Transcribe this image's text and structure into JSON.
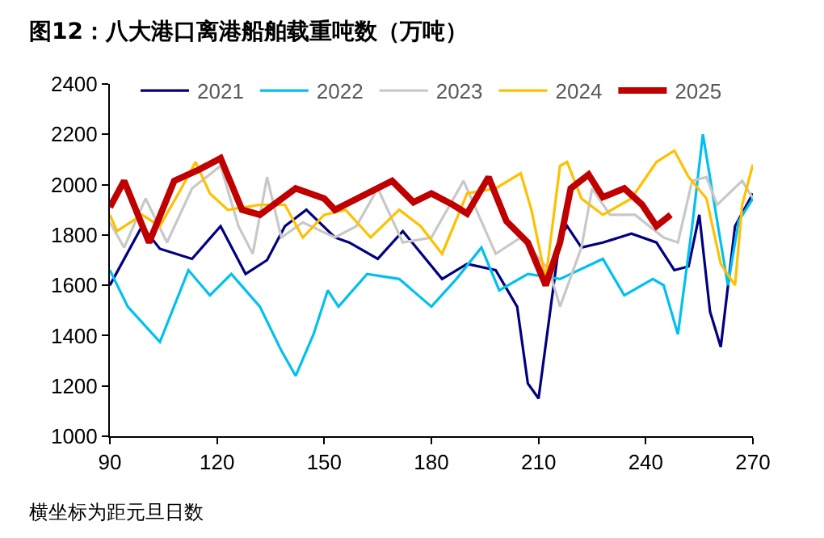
{
  "chart_data": {
    "type": "line",
    "title": "图12：八大港口离港船舶载重吨数（万吨）",
    "annotations": [
      "横坐标为距元旦日数"
    ],
    "xlim": [
      90,
      270
    ],
    "xticks": [
      90,
      120,
      150,
      180,
      210,
      240,
      270
    ],
    "ylim": [
      1000,
      2400
    ],
    "yticks": [
      1000,
      1200,
      1400,
      1600,
      1800,
      2000,
      2200,
      2400
    ],
    "grid": false,
    "legend": "top",
    "line_style": "solid",
    "marker": "none",
    "series": [
      {
        "name": "2021",
        "color": "#000080",
        "x": [
          90,
          99,
          104,
          113,
          121,
          128,
          134,
          139,
          145,
          153,
          157,
          165,
          172,
          183,
          190,
          198,
          204,
          207,
          210,
          213,
          216,
          218,
          222,
          228,
          236,
          243,
          248,
          252,
          255,
          258,
          261,
          265,
          270
        ],
        "values": [
          1600,
          1835,
          1745,
          1705,
          1835,
          1645,
          1700,
          1835,
          1900,
          1790,
          1770,
          1705,
          1815,
          1625,
          1685,
          1660,
          1515,
          1210,
          1150,
          1470,
          1790,
          1835,
          1750,
          1770,
          1805,
          1770,
          1660,
          1675,
          1880,
          1495,
          1355,
          1835,
          1965
        ]
      },
      {
        "name": "2022",
        "color": "#00c0f0",
        "x": [
          90,
          95,
          104,
          112,
          118,
          124,
          132,
          138,
          142,
          147,
          151,
          154,
          162,
          171,
          180,
          187,
          194,
          199,
          207,
          216,
          219,
          228,
          234,
          242,
          245,
          249,
          253,
          256,
          260,
          263,
          266,
          270
        ],
        "values": [
          1660,
          1515,
          1375,
          1660,
          1560,
          1645,
          1515,
          1340,
          1240,
          1405,
          1580,
          1515,
          1645,
          1625,
          1515,
          1625,
          1750,
          1580,
          1645,
          1625,
          1645,
          1705,
          1560,
          1625,
          1600,
          1405,
          1835,
          2200,
          1855,
          1600,
          1855,
          1945
        ]
      },
      {
        "name": "2023",
        "color": "#c8c8c8",
        "x": [
          90,
          94,
          100,
          106,
          113,
          121,
          126,
          130,
          134,
          138,
          144,
          153,
          159,
          165,
          172,
          180,
          189,
          198,
          205,
          213,
          216,
          222,
          225,
          230,
          237,
          245,
          249,
          253,
          257,
          260,
          267,
          270
        ],
        "values": [
          1850,
          1750,
          1945,
          1770,
          1985,
          2075,
          1835,
          1725,
          2030,
          1790,
          1850,
          1790,
          1835,
          1985,
          1770,
          1790,
          2015,
          1725,
          1790,
          1660,
          1515,
          1750,
          1985,
          1880,
          1880,
          1790,
          1770,
          2015,
          2030,
          1920,
          2015,
          1945
        ]
      },
      {
        "name": "2024",
        "color": "#ffc000",
        "x": [
          90,
          92,
          99,
          104,
          110,
          114,
          118,
          123,
          132,
          139,
          144,
          150,
          156,
          163,
          171,
          177,
          183,
          190,
          198,
          205,
          208,
          212,
          216,
          218,
          222,
          228,
          236,
          243,
          248,
          252,
          257,
          261,
          265,
          267,
          270
        ],
        "values": [
          1880,
          1815,
          1880,
          1835,
          1985,
          2090,
          1965,
          1900,
          1920,
          1920,
          1790,
          1880,
          1900,
          1790,
          1900,
          1835,
          1725,
          1965,
          1985,
          2045,
          1900,
          1625,
          2075,
          2090,
          1945,
          1880,
          1945,
          2090,
          2135,
          2030,
          1945,
          1685,
          1600,
          1920,
          2080
        ]
      },
      {
        "name": "2025",
        "color": "#c00000",
        "x": [
          90,
          94,
          101,
          108,
          115,
          121,
          127,
          132,
          142,
          150,
          153,
          169,
          175,
          180,
          186,
          190,
          196,
          201,
          207,
          212,
          216,
          219,
          224,
          228,
          234,
          239,
          243,
          247
        ],
        "values": [
          1910,
          2015,
          1770,
          2015,
          2060,
          2105,
          1900,
          1880,
          1985,
          1945,
          1900,
          2015,
          1930,
          1965,
          1920,
          1885,
          2030,
          1855,
          1770,
          1600,
          1770,
          1985,
          2040,
          1950,
          1985,
          1920,
          1835,
          1880
        ]
      }
    ]
  }
}
